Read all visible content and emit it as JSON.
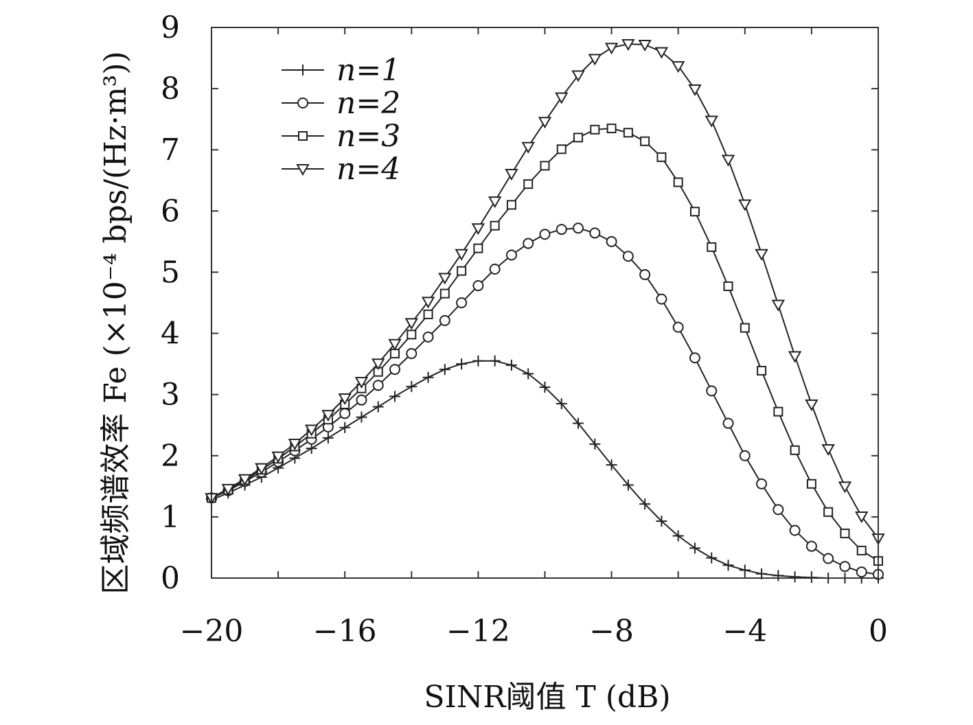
{
  "chart_data": {
    "type": "line",
    "xlabel": "SINR阈值 T (dB)",
    "ylabel": "区域频谱效率 Fe (×10⁻⁴ bps/(Hz·m³))",
    "xlim": [
      -20,
      0
    ],
    "ylim": [
      0,
      9
    ],
    "x_ticks": [
      -20,
      -16,
      -12,
      -8,
      -4,
      0
    ],
    "x_tick_labels": [
      "−20",
      "−16",
      "−12",
      "−8",
      "−4",
      "0"
    ],
    "y_ticks": [
      0,
      1,
      2,
      3,
      4,
      5,
      6,
      7,
      8,
      9
    ],
    "y_tick_labels": [
      "0",
      "1",
      "2",
      "3",
      "4",
      "5",
      "6",
      "7",
      "8",
      "9"
    ],
    "grid": false,
    "legend_position": "top-left",
    "series": [
      {
        "name": "n=1",
        "marker": "plus",
        "x": [
          -20,
          -19.5,
          -19,
          -18.5,
          -18,
          -17.5,
          -17,
          -16.5,
          -16,
          -15.5,
          -15,
          -14.5,
          -14,
          -13.5,
          -13,
          -12.5,
          -12,
          -11.5,
          -11,
          -10.5,
          -10,
          -9.5,
          -9,
          -8.5,
          -8,
          -7.5,
          -7,
          -6.5,
          -6,
          -5.5,
          -5,
          -4.5,
          -4,
          -3.5,
          -3,
          -2.5,
          -2,
          -1.5,
          -1,
          -0.5,
          0
        ],
        "values": [
          1.28,
          1.39,
          1.52,
          1.65,
          1.8,
          1.96,
          2.12,
          2.29,
          2.46,
          2.63,
          2.8,
          2.97,
          3.13,
          3.28,
          3.41,
          3.5,
          3.55,
          3.55,
          3.48,
          3.34,
          3.12,
          2.85,
          2.53,
          2.19,
          1.85,
          1.52,
          1.21,
          0.93,
          0.69,
          0.49,
          0.33,
          0.21,
          0.13,
          0.07,
          0.04,
          0.02,
          0.01,
          0.0,
          0.0,
          0.0,
          0.0
        ]
      },
      {
        "name": "n=2",
        "marker": "circle",
        "x": [
          -20,
          -19.5,
          -19,
          -18.5,
          -18,
          -17.5,
          -17,
          -16.5,
          -16,
          -15.5,
          -15,
          -14.5,
          -14,
          -13.5,
          -13,
          -12.5,
          -12,
          -11.5,
          -11,
          -10.5,
          -10,
          -9.5,
          -9,
          -8.5,
          -8,
          -7.5,
          -7,
          -6.5,
          -6,
          -5.5,
          -5,
          -4.5,
          -4,
          -3.5,
          -3,
          -2.5,
          -2,
          -1.5,
          -1,
          -0.5,
          0
        ],
        "values": [
          1.31,
          1.43,
          1.58,
          1.73,
          1.9,
          2.08,
          2.27,
          2.47,
          2.69,
          2.91,
          3.15,
          3.41,
          3.67,
          3.94,
          4.21,
          4.5,
          4.78,
          5.05,
          5.28,
          5.47,
          5.62,
          5.7,
          5.72,
          5.64,
          5.5,
          5.26,
          4.96,
          4.56,
          4.1,
          3.6,
          3.06,
          2.53,
          2.0,
          1.54,
          1.12,
          0.78,
          0.52,
          0.32,
          0.19,
          0.1,
          0.06
        ]
      },
      {
        "name": "n=3",
        "marker": "square",
        "x": [
          -20,
          -19.5,
          -19,
          -18.5,
          -18,
          -17.5,
          -17,
          -16.5,
          -16,
          -15.5,
          -15,
          -14.5,
          -14,
          -13.5,
          -13,
          -12.5,
          -12,
          -11.5,
          -11,
          -10.5,
          -10,
          -9.5,
          -9,
          -8.5,
          -8,
          -7.5,
          -7,
          -6.5,
          -6,
          -5.5,
          -5,
          -4.5,
          -4,
          -3.5,
          -3,
          -2.5,
          -2,
          -1.5,
          -1,
          -0.5,
          0
        ],
        "values": [
          1.31,
          1.44,
          1.6,
          1.77,
          1.95,
          2.15,
          2.36,
          2.59,
          2.84,
          3.1,
          3.37,
          3.67,
          3.98,
          4.31,
          4.65,
          5.02,
          5.39,
          5.76,
          6.1,
          6.44,
          6.74,
          7.01,
          7.2,
          7.33,
          7.35,
          7.28,
          7.14,
          6.88,
          6.47,
          5.99,
          5.41,
          4.77,
          4.09,
          3.39,
          2.72,
          2.09,
          1.54,
          1.08,
          0.73,
          0.45,
          0.28
        ]
      },
      {
        "name": "n=4",
        "marker": "triangle-down",
        "x": [
          -20,
          -19.5,
          -19,
          -18.5,
          -18,
          -17.5,
          -17,
          -16.5,
          -16,
          -15.5,
          -15,
          -14.5,
          -14,
          -13.5,
          -13,
          -12.5,
          -12,
          -11.5,
          -11,
          -10.5,
          -10,
          -9.5,
          -9,
          -8.5,
          -8,
          -7.5,
          -7,
          -6.5,
          -6,
          -5.5,
          -5,
          -4.5,
          -4,
          -3.5,
          -3,
          -2.5,
          -2,
          -1.5,
          -1,
          -0.5,
          0
        ],
        "values": [
          1.31,
          1.46,
          1.62,
          1.8,
          1.99,
          2.2,
          2.43,
          2.67,
          2.94,
          3.21,
          3.51,
          3.83,
          4.17,
          4.52,
          4.91,
          5.3,
          5.72,
          6.16,
          6.61,
          7.05,
          7.46,
          7.86,
          8.22,
          8.49,
          8.67,
          8.73,
          8.72,
          8.6,
          8.37,
          7.99,
          7.48,
          6.84,
          6.11,
          5.3,
          4.47,
          3.63,
          2.84,
          2.11,
          1.5,
          1.01,
          0.65
        ]
      }
    ]
  }
}
